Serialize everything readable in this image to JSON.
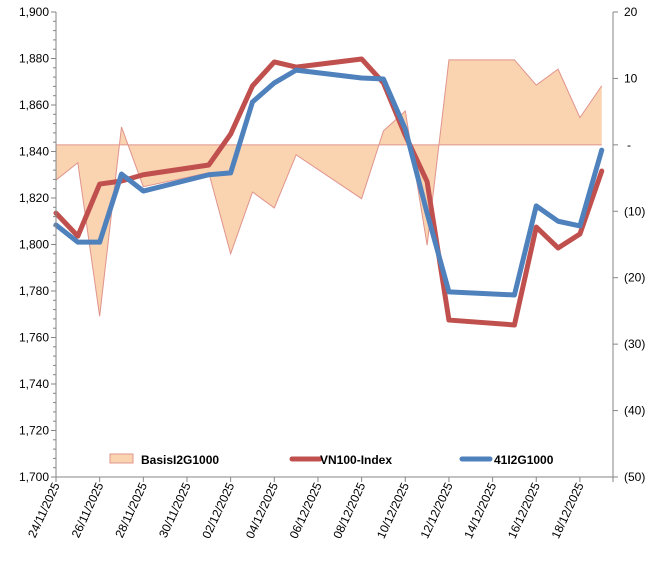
{
  "chart_data": {
    "type": "line",
    "title": "",
    "dates": [
      "24/11/2025",
      "25/11/2025",
      "26/11/2025",
      "27/11/2025",
      "28/11/2025",
      "01/12/2025",
      "02/12/2025",
      "03/12/2025",
      "04/12/2025",
      "05/12/2025",
      "08/12/2025",
      "09/12/2025",
      "10/12/2025",
      "11/12/2025",
      "12/12/2025",
      "15/12/2025",
      "16/12/2025",
      "17/12/2025",
      "18/12/2025",
      "19/12/2025"
    ],
    "x_tick_labels": [
      "24/11/2025",
      "26/11/2025",
      "28/11/2025",
      "30/11/2025",
      "02/12/2025",
      "04/12/2025",
      "06/12/2025",
      "08/12/2025",
      "10/12/2025",
      "12/12/2025",
      "14/12/2025",
      "16/12/2025",
      "18/12/2025"
    ],
    "left_axis": {
      "min": 1700,
      "max": 1900,
      "ticks": [
        "1,700",
        "1,720",
        "1,740",
        "1,760",
        "1,780",
        "1,800",
        "1,820",
        "1,840",
        "1,860",
        "1,880",
        "1,900"
      ]
    },
    "right_axis": {
      "min": -50,
      "max": 20,
      "ticks": [
        "(50)",
        "(40)",
        "(30)",
        "(20)",
        "(10)",
        "-",
        "10",
        "20"
      ]
    },
    "series": [
      {
        "name": "BasisI2G1000",
        "type": "area",
        "axis": "right",
        "color": "#FAD3B1",
        "stroke": "#E0948C",
        "values": [
          -5.3,
          -2.7,
          -25.8,
          2.7,
          -6.3,
          -4.2,
          -16.4,
          -7.1,
          -9.5,
          -1.5,
          -8.1,
          2.1,
          5.1,
          -15.1,
          12.8,
          12.8,
          9.0,
          11.4,
          4.1,
          8.9
        ]
      },
      {
        "name": "VN100-Index",
        "type": "line",
        "axis": "left",
        "color": "#C0504D",
        "values": [
          1813.5,
          1803.6,
          1826.0,
          1827.3,
          1830.0,
          1834.2,
          1847.5,
          1868.2,
          1878.5,
          1876.3,
          1879.8,
          1869.5,
          1847.0,
          1827.0,
          1767.5,
          1765.4,
          1807.5,
          1798.5,
          1804.5,
          1831.6
        ]
      },
      {
        "name": "41I2G1000",
        "type": "line",
        "axis": "left",
        "color": "#4F81BD",
        "values": [
          1808.4,
          1801.0,
          1801.0,
          1830.3,
          1823.0,
          1830.0,
          1830.8,
          1861.3,
          1869.5,
          1875.0,
          1871.6,
          1871.2,
          1849.7,
          1813.5,
          1779.6,
          1778.3,
          1816.6,
          1810.0,
          1808.0,
          1840.6
        ]
      }
    ],
    "legend": {
      "placement": "bottom-inside",
      "items": [
        "BasisI2G1000",
        "VN100-Index",
        "41I2G1000"
      ]
    },
    "grid": false
  }
}
